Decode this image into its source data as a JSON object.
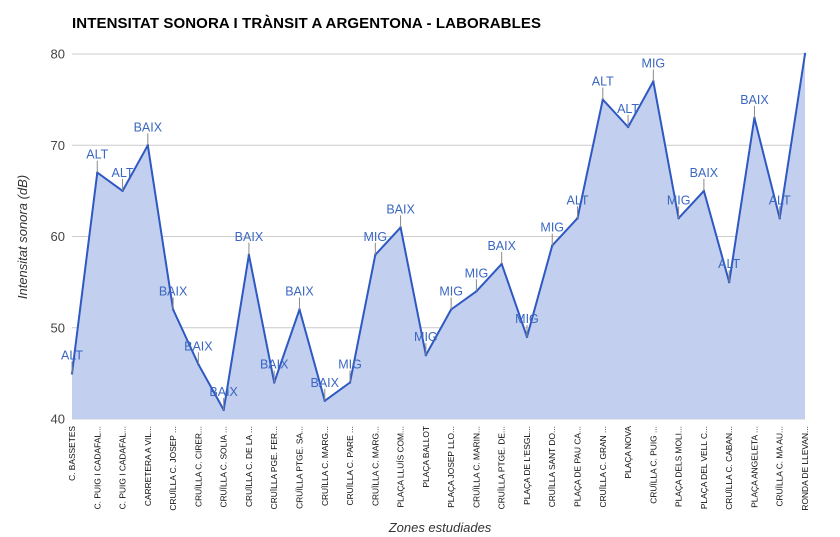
{
  "chart_data": {
    "type": "area",
    "title": "INTENSITAT SONORA I TRÀNSIT A ARGENTONA - LABORABLES",
    "xlabel": "Zones estudiades",
    "ylabel": "Intensitat sonora (dB)",
    "ylim": [
      40,
      80
    ],
    "yticks": [
      40,
      50,
      60,
      70,
      80
    ],
    "grid": true,
    "colors": {
      "line": "#2e58c2",
      "fill": "#c2cfee",
      "annotation": "#3b67c2",
      "grid": "#cccccc"
    },
    "categories": [
      "C. BASSETES",
      "C. PUIG I CADAFAL...",
      "C. PUIG I CADAFAL...",
      "CARRETERA A VIL...",
      "CRUÏLLA C. JOSEP ...",
      "CRUÏLLA C. CIRER...",
      "CRUÏLLA C. SOLIA ...",
      "CRUÏLLA C. DE LA ...",
      "CRUÏLLA PGE. FER...",
      "CRUÏLLA PTGE. SA...",
      "CRUÏLLA C. MARG...",
      "CRUÏLLA C. PARE ...",
      "CRUÏLLA C. MARG...",
      "PLAÇA LLUÍS COM...",
      "PLAÇA BALLOT",
      "PLAÇA JOSEP LLO...",
      "CRUÏLLA C. MARIN...",
      "CRUÏLLA PTGE. DE...",
      "PLAÇA DE L'ESGL...",
      "CRUÏLLA SANT DO...",
      "PLAÇA DE PAU CA...",
      "CRUÏLLA C. GRAN ...",
      "PLAÇA NOVA",
      "CRUÏLLA C. PUIG ...",
      "PLAÇA DELS MOLI...",
      "PLAÇA DEL VELL C...",
      "CRUÏLLA C. CABAN...",
      "PLAÇA ANGELETA ...",
      "CRUÏLLA C. MA AU...",
      "RONDA DE LLEVAN..."
    ],
    "values": [
      45,
      67,
      65,
      70,
      52,
      46,
      41,
      58,
      44,
      52,
      42,
      44,
      58,
      61,
      47,
      52,
      54,
      57,
      49,
      59,
      62,
      75,
      72,
      77,
      62,
      65,
      55,
      73,
      62,
      80
    ],
    "annotations": [
      "ALT",
      "ALT",
      "ALT",
      "BAIX",
      "BAIX",
      "BAIX",
      "BAIX",
      "BAIX",
      "BAIX",
      "BAIX",
      "BAIX",
      "MIG",
      "MIG",
      "BAIX",
      "MIG",
      "MIG",
      "MIG",
      "BAIX",
      "MIG",
      "MIG",
      "ALT",
      "ALT",
      "ALT",
      "MIG",
      "MIG",
      "BAIX",
      "ALT",
      "BAIX",
      "ALT",
      ""
    ]
  }
}
